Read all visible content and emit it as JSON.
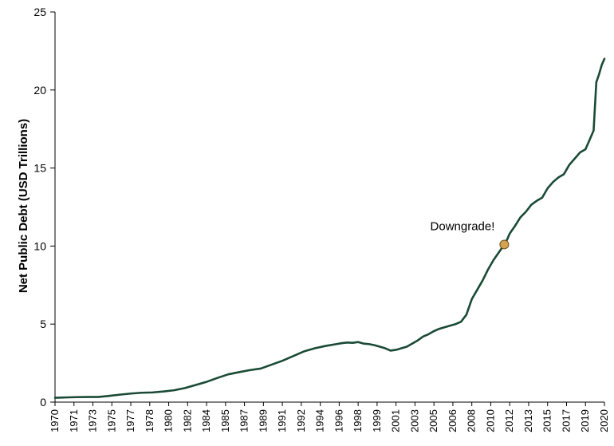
{
  "chart_data": {
    "type": "line",
    "title": "",
    "xlabel": "",
    "ylabel": "Net Public Debt (USD Trillions)",
    "xlim": [
      1970,
      2020.75
    ],
    "ylim": [
      0,
      25
    ],
    "yticks": [
      0,
      5,
      10,
      15,
      20,
      25
    ],
    "xtick_labels": [
      "1970",
      "1971",
      "1973",
      "1975",
      "1977",
      "1978",
      "1980",
      "1982",
      "1984",
      "1985",
      "1987",
      "1989",
      "1991",
      "1992",
      "1994",
      "1996",
      "1998",
      "1999",
      "2001",
      "2003",
      "2005",
      "2006",
      "2008",
      "2010",
      "2012",
      "2013",
      "2015",
      "2017",
      "2019",
      "2020"
    ],
    "grid": false,
    "colors": {
      "line": "#1a4a35",
      "marker": "#d4a350",
      "marker_edge": "#6b5020"
    },
    "series": [
      {
        "x": [
          1970.0,
          1971.0,
          1972.0,
          1973.0,
          1974.0,
          1975.0,
          1976.0,
          1977.0,
          1978.0,
          1979.0,
          1980.0,
          1981.0,
          1982.0,
          1983.0,
          1984.0,
          1985.0,
          1986.0,
          1987.0,
          1988.0,
          1989.0,
          1990.0,
          1991.0,
          1992.0,
          1993.0,
          1994.0,
          1995.0,
          1996.0,
          1996.5,
          1997.0,
          1997.5,
          1998.0,
          1998.5,
          1999.0,
          1999.5,
          2000.0,
          2000.5,
          2001.0,
          2001.5,
          2002.0,
          2002.5,
          2003.0,
          2003.5,
          2004.0,
          2004.5,
          2005.0,
          2005.5,
          2006.0,
          2006.5,
          2007.0,
          2007.5,
          2008.0,
          2008.5,
          2009.0,
          2009.5,
          2010.0,
          2010.5,
          2011.0,
          2011.25,
          2011.5,
          2011.75,
          2012.0,
          2012.5,
          2013.0,
          2013.5,
          2014.0,
          2014.5,
          2015.0,
          2015.5,
          2016.0,
          2016.5,
          2017.0,
          2017.5,
          2018.0,
          2018.5,
          2019.0,
          2019.5,
          2019.75,
          2020.0,
          2020.25,
          2020.5,
          2020.75
        ],
        "values": [
          0.28,
          0.3,
          0.32,
          0.33,
          0.33,
          0.4,
          0.48,
          0.55,
          0.6,
          0.62,
          0.68,
          0.76,
          0.9,
          1.1,
          1.3,
          1.55,
          1.78,
          1.92,
          2.05,
          2.15,
          2.4,
          2.65,
          2.95,
          3.25,
          3.45,
          3.6,
          3.72,
          3.78,
          3.82,
          3.8,
          3.85,
          3.75,
          3.72,
          3.65,
          3.55,
          3.45,
          3.3,
          3.35,
          3.45,
          3.55,
          3.75,
          3.95,
          4.2,
          4.35,
          4.55,
          4.7,
          4.8,
          4.9,
          5.0,
          5.15,
          5.6,
          6.6,
          7.2,
          7.8,
          8.5,
          9.1,
          9.6,
          9.85,
          10.1,
          10.4,
          10.8,
          11.3,
          11.85,
          12.2,
          12.65,
          12.9,
          13.1,
          13.7,
          14.1,
          14.4,
          14.6,
          15.2,
          15.6,
          16.0,
          16.2,
          17.0,
          17.4,
          20.5,
          21.0,
          21.6,
          22.0
        ]
      }
    ],
    "annotations": [
      {
        "x": 2011.5,
        "y": 10.1,
        "text": "Downgrade!"
      }
    ]
  }
}
